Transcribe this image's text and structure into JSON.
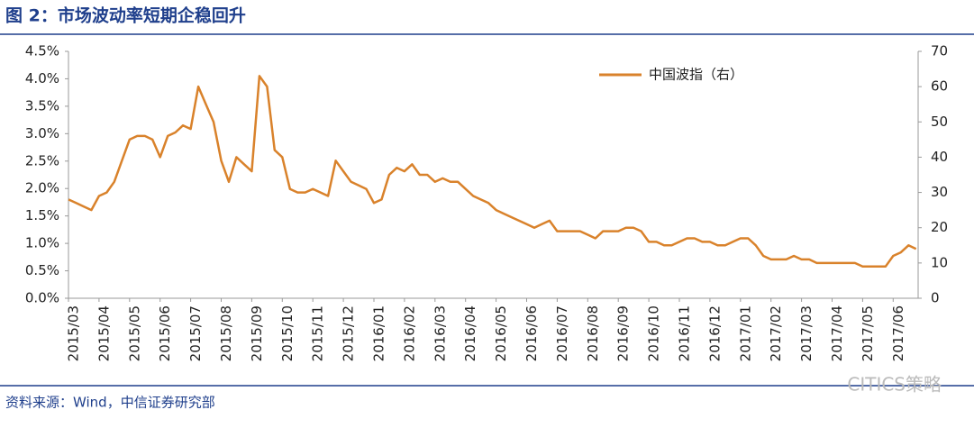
{
  "chart_data": {
    "type": "line",
    "title": "图 2：市场波动率短期企稳回升",
    "source": "资料来源：Wind，中信证券研究部",
    "watermark": "CITICS策略",
    "xticks": [
      "2015/03",
      "2015/04",
      "2015/05",
      "2015/06",
      "2015/07",
      "2015/08",
      "2015/09",
      "2015/10",
      "2015/11",
      "2015/12",
      "2016/01",
      "2016/02",
      "2016/03",
      "2016/04",
      "2016/05",
      "2016/06",
      "2016/07",
      "2016/08",
      "2016/09",
      "2016/10",
      "2016/11",
      "2016/12",
      "2017/01",
      "2017/02",
      "2017/03",
      "2017/04",
      "2017/05",
      "2017/06"
    ],
    "ylim": [
      0,
      4.5
    ],
    "yticks": [
      {
        "value": 0,
        "label": "0.0%"
      },
      {
        "value": 0.5,
        "label": "0.5%"
      },
      {
        "value": 1,
        "label": "1.0%"
      },
      {
        "value": 1.5,
        "label": "1.5%"
      },
      {
        "value": 2,
        "label": "2.0%"
      },
      {
        "value": 2.5,
        "label": "2.5%"
      },
      {
        "value": 3,
        "label": "3.0%"
      },
      {
        "value": 3.5,
        "label": "3.5%"
      },
      {
        "value": 4,
        "label": "4.0%"
      },
      {
        "value": 4.5,
        "label": "4.5%"
      }
    ],
    "y2lim": [
      0,
      70
    ],
    "y2ticks": [
      0,
      10,
      20,
      30,
      40,
      50,
      60,
      70
    ],
    "legend": "top-right",
    "series": [
      {
        "name": "中国波指（右）",
        "color": "#d9822b",
        "axis": "y2",
        "values": [
          28,
          27,
          26,
          25,
          29,
          30,
          33,
          39,
          45,
          46,
          46,
          45,
          40,
          46,
          47,
          49,
          48,
          60,
          55,
          50,
          39,
          33,
          40,
          38,
          36,
          63,
          60,
          42,
          40,
          31,
          30,
          30,
          31,
          30,
          29,
          39,
          36,
          33,
          32,
          31,
          27,
          28,
          35,
          37,
          36,
          38,
          35,
          35,
          33,
          34,
          33,
          33,
          31,
          29,
          28,
          27,
          25,
          24,
          23,
          22,
          21,
          20,
          21,
          22,
          19,
          19,
          19,
          19,
          18,
          17,
          19,
          19,
          19,
          20,
          20,
          19,
          16,
          16,
          15,
          15,
          16,
          17,
          17,
          16,
          16,
          15,
          15,
          16,
          17,
          17,
          15,
          12,
          11,
          11,
          11,
          12,
          11,
          11,
          10,
          10,
          10,
          10,
          10,
          10,
          9,
          9,
          9,
          9,
          12,
          13,
          15,
          14
        ]
      }
    ]
  }
}
